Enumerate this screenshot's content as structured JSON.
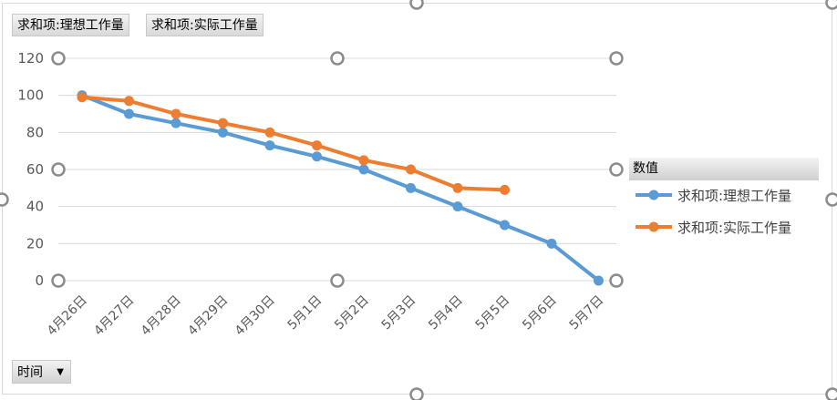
{
  "field_buttons": {
    "ideal": "求和项:理想工作量",
    "actual": "求和项:实际工作量"
  },
  "legend": {
    "title": "数值",
    "items": [
      {
        "label": "求和项:理想工作量"
      },
      {
        "label": "求和项:实际工作量"
      }
    ]
  },
  "axis_field": {
    "label": "时间"
  },
  "chart_data": {
    "type": "line",
    "categories": [
      "4月26日",
      "4月27日",
      "4月28日",
      "4月29日",
      "4月30日",
      "5月1日",
      "5月2日",
      "5月3日",
      "5月4日",
      "5月5日",
      "5月6日",
      "5月7日"
    ],
    "series": [
      {
        "name": "求和项:理想工作量",
        "color": "#5b9bd5",
        "values": [
          100,
          90,
          85,
          80,
          73,
          67,
          60,
          50,
          40,
          30,
          20,
          0
        ]
      },
      {
        "name": "求和项:实际工作量",
        "color": "#ed7d31",
        "values": [
          99,
          97,
          90,
          85,
          80,
          73,
          65,
          60,
          50,
          49,
          null,
          null
        ]
      }
    ],
    "yticks": [
      0,
      20,
      40,
      60,
      80,
      100,
      120
    ],
    "ylim": [
      0,
      120
    ],
    "grid": true,
    "legend_position": "right"
  }
}
